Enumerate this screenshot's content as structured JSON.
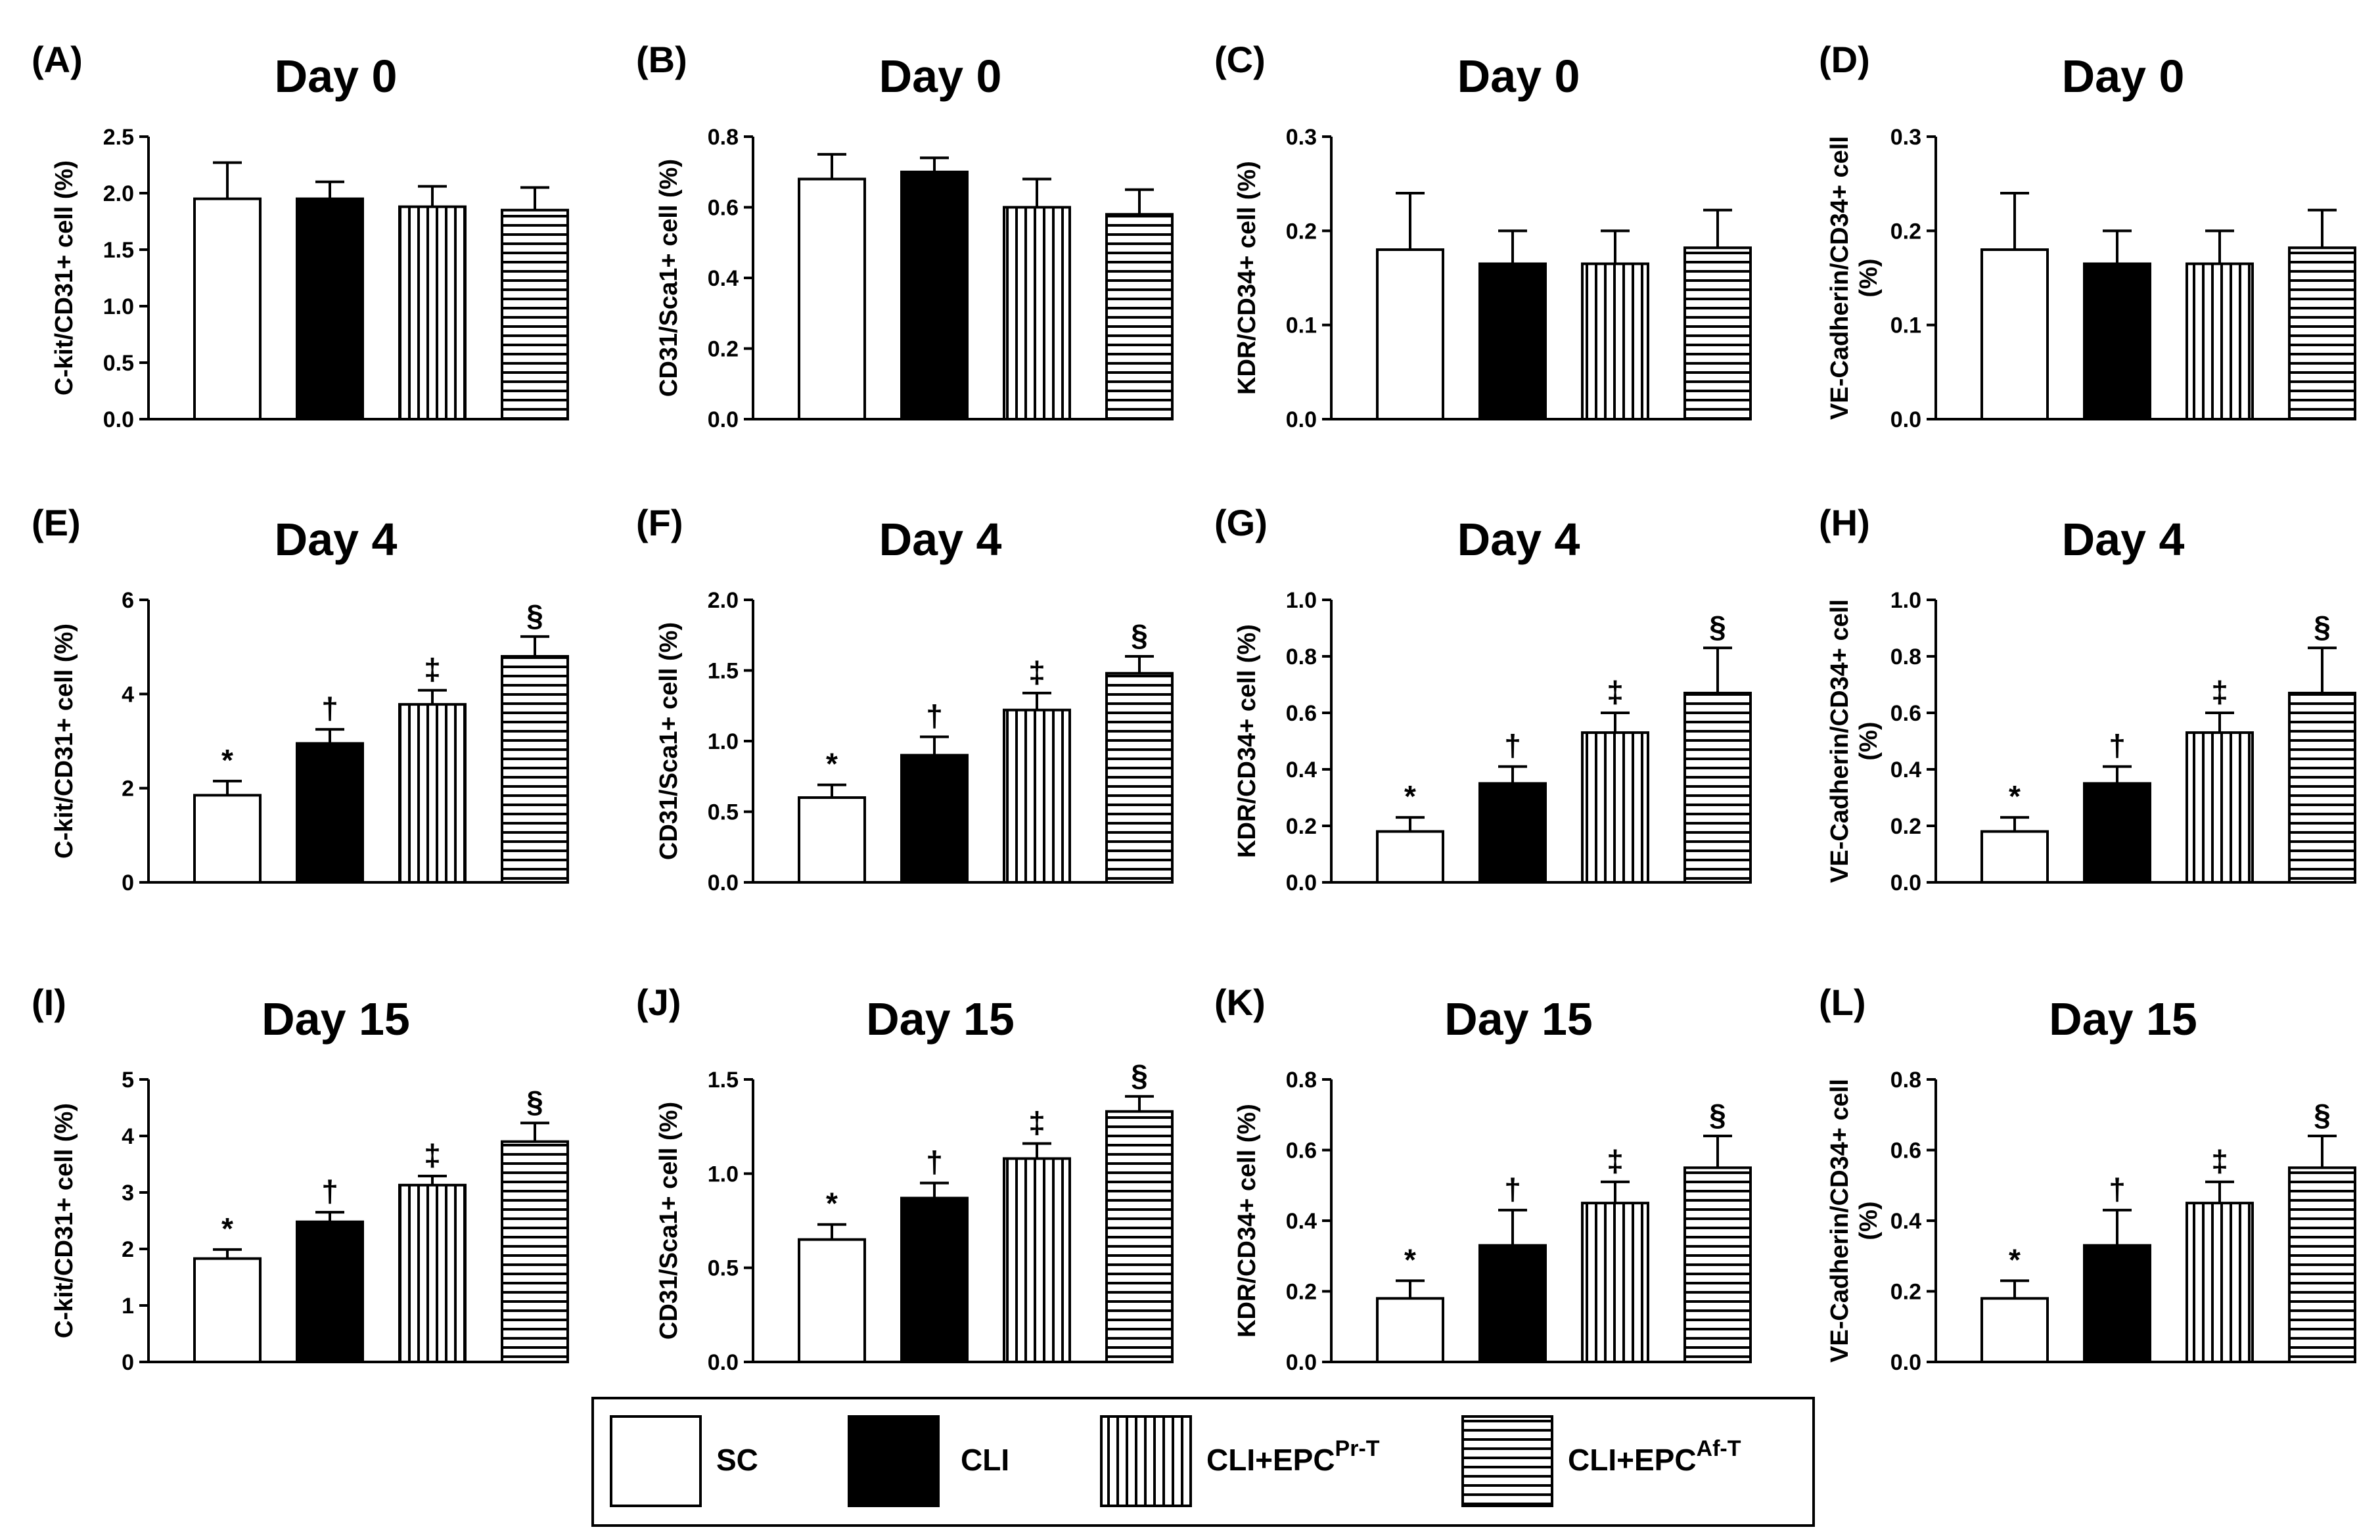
{
  "chart_data": {
    "type": "bar",
    "groups": [
      "SC",
      "CLI",
      "CLI+EPC^Pr-T",
      "CLI+EPC^Af-T"
    ],
    "legend": [
      {
        "label": "SC",
        "sup": "",
        "pattern": "white"
      },
      {
        "label": "CLI",
        "sup": "",
        "pattern": "black"
      },
      {
        "label": "CLI+EPC",
        "sup": "Pr-T",
        "pattern": "vertical"
      },
      {
        "label": "CLI+EPC",
        "sup": "Af-T",
        "pattern": "horizontal"
      }
    ],
    "panels": [
      {
        "letter": "(A)",
        "title": "Day 0",
        "ylabel": [
          "C-kit/CD31+ cell (%)"
        ],
        "ylim": [
          0,
          2.5
        ],
        "ticks": [
          "0.0",
          "0.5",
          "1.0",
          "1.5",
          "2.0",
          "2.5"
        ],
        "values": [
          1.95,
          1.95,
          1.88,
          1.85
        ],
        "errors": [
          0.32,
          0.15,
          0.18,
          0.2
        ],
        "sig": [
          "",
          "",
          "",
          ""
        ]
      },
      {
        "letter": "(B)",
        "title": "Day 0",
        "ylabel": [
          "CD31/Sca1+ cell (%)"
        ],
        "ylim": [
          0,
          0.8
        ],
        "ticks": [
          "0.0",
          "0.2",
          "0.4",
          "0.6",
          "0.8"
        ],
        "values": [
          0.68,
          0.7,
          0.6,
          0.58
        ],
        "errors": [
          0.07,
          0.04,
          0.08,
          0.07
        ],
        "sig": [
          "",
          "",
          "",
          ""
        ]
      },
      {
        "letter": "(C)",
        "title": "Day 0",
        "ylabel": [
          "KDR/CD34+ cell (%)"
        ],
        "ylim": [
          0,
          0.3
        ],
        "ticks": [
          "0.0",
          "0.1",
          "0.2",
          "0.3"
        ],
        "values": [
          0.18,
          0.165,
          0.165,
          0.182
        ],
        "errors": [
          0.06,
          0.035,
          0.035,
          0.04
        ],
        "sig": [
          "",
          "",
          "",
          ""
        ]
      },
      {
        "letter": "(D)",
        "title": "Day 0",
        "ylabel": [
          "VE-Cadherin/CD34+ cell",
          "(%)"
        ],
        "ylim": [
          0,
          0.3
        ],
        "ticks": [
          "0.0",
          "0.1",
          "0.2",
          "0.3"
        ],
        "values": [
          0.18,
          0.165,
          0.165,
          0.182
        ],
        "errors": [
          0.06,
          0.035,
          0.035,
          0.04
        ],
        "sig": [
          "",
          "",
          "",
          ""
        ]
      },
      {
        "letter": "(E)",
        "title": "Day 4",
        "ylabel": [
          "C-kit/CD31+ cell (%)"
        ],
        "ylim": [
          0,
          6
        ],
        "ticks": [
          "0",
          "2",
          "4",
          "6"
        ],
        "values": [
          1.85,
          2.95,
          3.78,
          4.8
        ],
        "errors": [
          0.3,
          0.3,
          0.3,
          0.42
        ],
        "sig": [
          "*",
          "†",
          "‡",
          "§"
        ]
      },
      {
        "letter": "(F)",
        "title": "Day 4",
        "ylabel": [
          "CD31/Sca1+ cell (%)"
        ],
        "ylim": [
          0,
          2.0
        ],
        "ticks": [
          "0.0",
          "0.5",
          "1.0",
          "1.5",
          "2.0"
        ],
        "values": [
          0.6,
          0.9,
          1.22,
          1.48
        ],
        "errors": [
          0.09,
          0.13,
          0.12,
          0.12
        ],
        "sig": [
          "*",
          "†",
          "‡",
          "§"
        ]
      },
      {
        "letter": "(G)",
        "title": "Day 4",
        "ylabel": [
          "KDR/CD34+ cell (%)"
        ],
        "ylim": [
          0,
          1.0
        ],
        "ticks": [
          "0.0",
          "0.2",
          "0.4",
          "0.6",
          "0.8",
          "1.0"
        ],
        "values": [
          0.18,
          0.35,
          0.53,
          0.67
        ],
        "errors": [
          0.05,
          0.06,
          0.07,
          0.16
        ],
        "sig": [
          "*",
          "†",
          "‡",
          "§"
        ]
      },
      {
        "letter": "(H)",
        "title": "Day 4",
        "ylabel": [
          "VE-Cadherin/CD34+ cell",
          "(%)"
        ],
        "ylim": [
          0,
          1.0
        ],
        "ticks": [
          "0.0",
          "0.2",
          "0.4",
          "0.6",
          "0.8",
          "1.0"
        ],
        "values": [
          0.18,
          0.35,
          0.53,
          0.67
        ],
        "errors": [
          0.05,
          0.06,
          0.07,
          0.16
        ],
        "sig": [
          "*",
          "†",
          "‡",
          "§"
        ]
      },
      {
        "letter": "(I)",
        "title": "Day 15",
        "ylabel": [
          "C-kit/CD31+ cell (%)"
        ],
        "ylim": [
          0,
          5
        ],
        "ticks": [
          "0",
          "1",
          "2",
          "3",
          "4",
          "5"
        ],
        "values": [
          1.83,
          2.48,
          3.13,
          3.9
        ],
        "errors": [
          0.16,
          0.17,
          0.16,
          0.33
        ],
        "sig": [
          "*",
          "†",
          "‡",
          "§"
        ]
      },
      {
        "letter": "(J)",
        "title": "Day 15",
        "ylabel": [
          "CD31/Sca1+ cell (%)"
        ],
        "ylim": [
          0,
          1.5
        ],
        "ticks": [
          "0.0",
          "0.5",
          "1.0",
          "1.5"
        ],
        "values": [
          0.65,
          0.87,
          1.08,
          1.33
        ],
        "errors": [
          0.08,
          0.08,
          0.08,
          0.08
        ],
        "sig": [
          "*",
          "†",
          "‡",
          "§"
        ]
      },
      {
        "letter": "(K)",
        "title": "Day 15",
        "ylabel": [
          "KDR/CD34+ cell (%)"
        ],
        "ylim": [
          0,
          0.8
        ],
        "ticks": [
          "0.0",
          "0.2",
          "0.4",
          "0.6",
          "0.8"
        ],
        "values": [
          0.18,
          0.33,
          0.45,
          0.55
        ],
        "errors": [
          0.05,
          0.1,
          0.06,
          0.09
        ],
        "sig": [
          "*",
          "†",
          "‡",
          "§"
        ]
      },
      {
        "letter": "(L)",
        "title": "Day 15",
        "ylabel": [
          "VE-Cadherin/CD34+ cell",
          "(%)"
        ],
        "ylim": [
          0,
          0.8
        ],
        "ticks": [
          "0.0",
          "0.2",
          "0.4",
          "0.6",
          "0.8"
        ],
        "values": [
          0.18,
          0.33,
          0.45,
          0.55
        ],
        "errors": [
          0.05,
          0.1,
          0.06,
          0.09
        ],
        "sig": [
          "*",
          "†",
          "‡",
          "§"
        ]
      }
    ]
  }
}
